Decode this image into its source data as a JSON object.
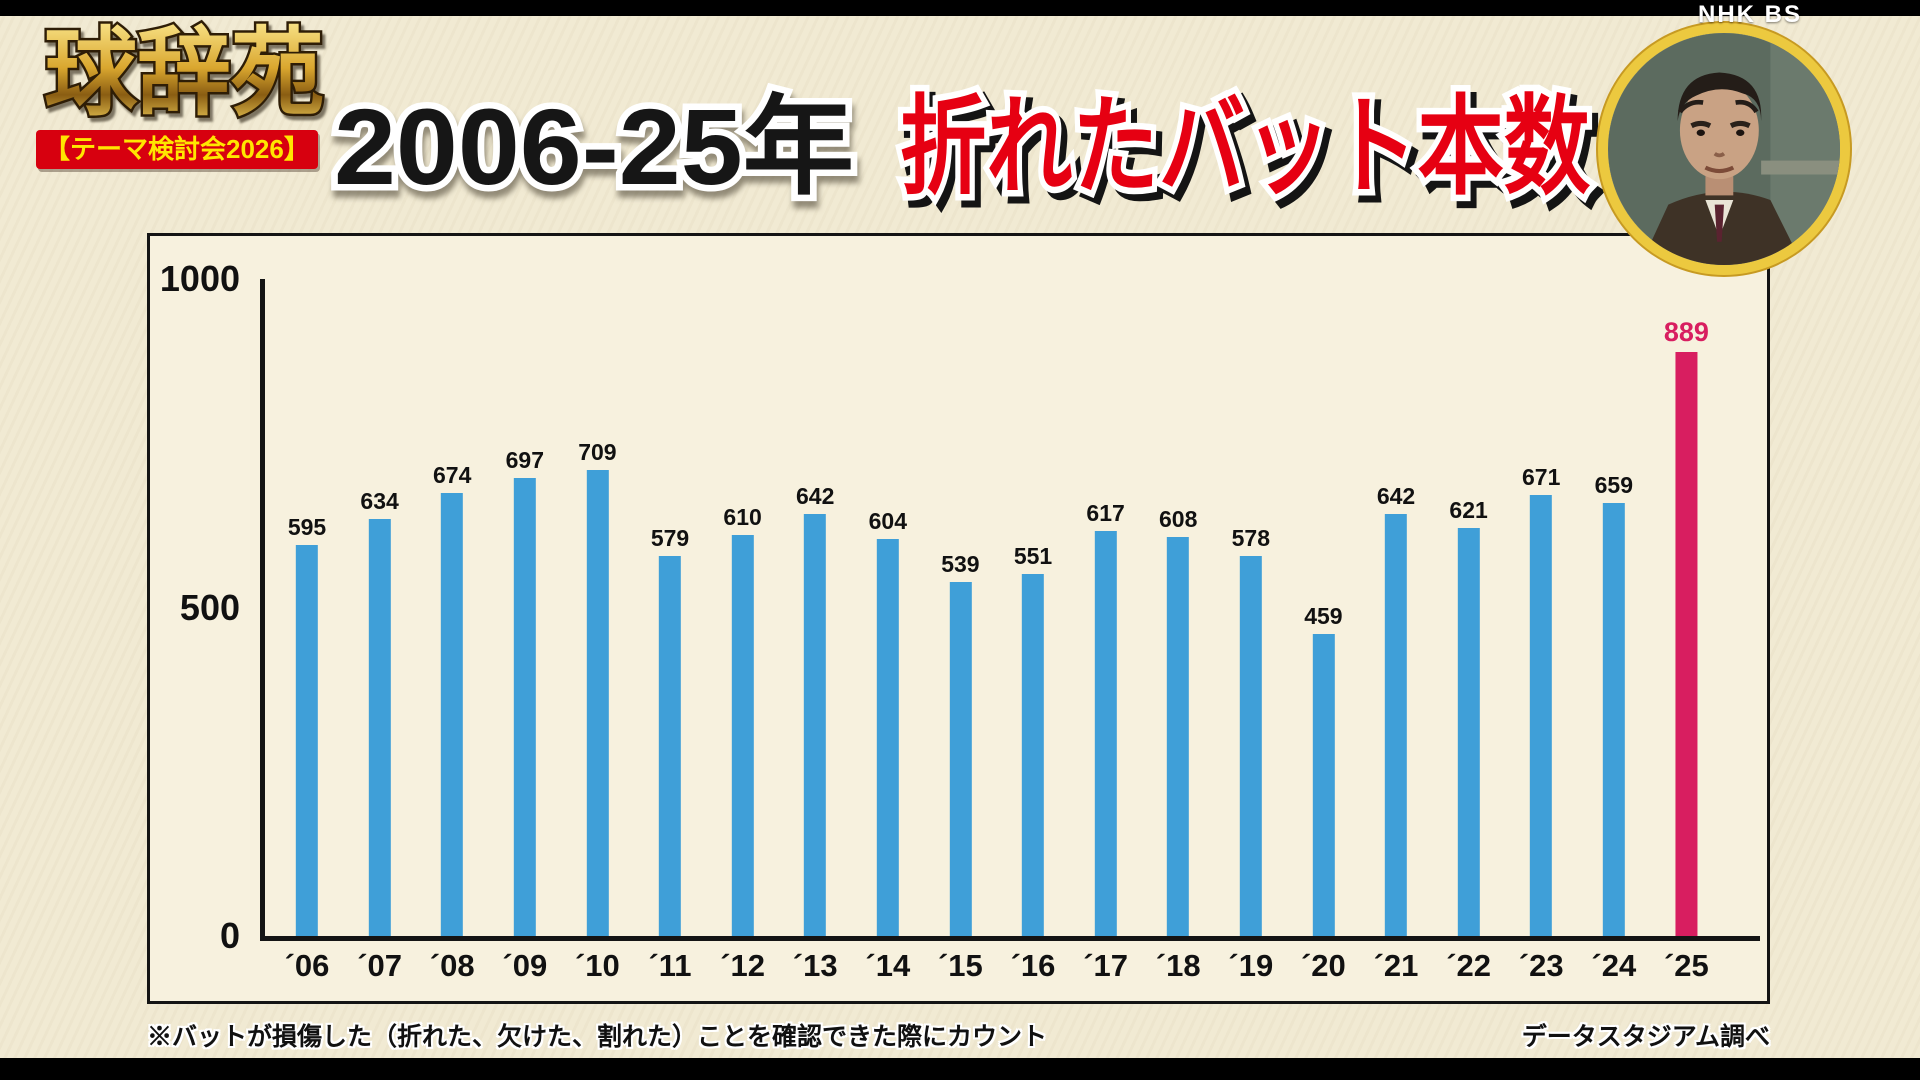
{
  "broadcaster": {
    "logo_text": "NHK BS"
  },
  "program": {
    "logo": "球辞苑",
    "badge": "【テーマ検討会2026】"
  },
  "header": {
    "period": "2006-25年",
    "title": "折れたバット本数"
  },
  "footnotes": {
    "note": "※バットが損傷した（折れた、欠けた、割れた）ことを確認できた際にカウント",
    "source": "データスタジアム調べ"
  },
  "icons": {
    "avatar": "panelist-portrait"
  },
  "colors": {
    "background": "#f1ead3",
    "bar": "#3f9fd8",
    "bar_highlight": "#d81e60",
    "title_red": "#e60012",
    "badge_bg": "#d7000f",
    "badge_text": "#ffe600",
    "logo_gold": "#d9a62e"
  },
  "chart_data": {
    "type": "bar",
    "title": "2006-25年 折れたバット本数",
    "categories": [
      "´06",
      "´07",
      "´08",
      "´09",
      "´10",
      "´11",
      "´12",
      "´13",
      "´14",
      "´15",
      "´16",
      "´17",
      "´18",
      "´19",
      "´20",
      "´21",
      "´22",
      "´23",
      "´24",
      "´25"
    ],
    "values": [
      595,
      634,
      674,
      697,
      709,
      579,
      610,
      642,
      604,
      539,
      551,
      617,
      608,
      578,
      459,
      642,
      621,
      671,
      659,
      889
    ],
    "highlight_index": 19,
    "highlight_category": "´25",
    "highlight_value": 889,
    "xlabel": "",
    "ylabel": "",
    "ylim": [
      0,
      1000
    ],
    "yticks": [
      0,
      500,
      1000
    ],
    "grid": false,
    "legend": false
  }
}
